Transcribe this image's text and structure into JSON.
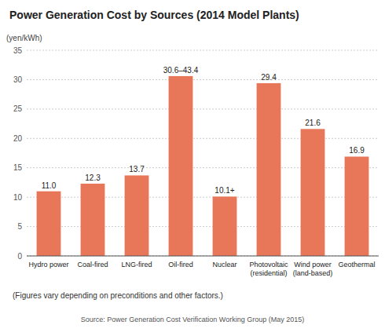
{
  "chart_data": {
    "type": "bar",
    "title": "Power Generation Cost by Sources (2014 Model Plants)",
    "ylabel": "(yen/kWh)",
    "categories": [
      "Hydro power",
      "Coal-fired",
      "LNG-fired",
      "Oil-fired",
      "Nuclear",
      "Photovoltaic\n(residential)",
      "Wind power\n(land-based)",
      "Geothermal"
    ],
    "values": [
      11.0,
      12.3,
      13.7,
      30.6,
      10.1,
      29.4,
      21.6,
      16.9
    ],
    "value_labels": [
      "11.0",
      "12.3",
      "13.7",
      "30.6–43.4",
      "10.1+",
      "29.4",
      "21.6",
      "16.9"
    ],
    "data_labels": true,
    "color": "#e8775a",
    "ylim": [
      0,
      35
    ],
    "yticks": [
      0,
      5,
      10,
      15,
      20,
      25,
      30,
      35
    ],
    "grid": true,
    "annotations": [
      "(Figures vary depending on preconditions and other factors.)",
      "Source: Power Generation Cost Verification Working Group (May 2015)"
    ]
  }
}
